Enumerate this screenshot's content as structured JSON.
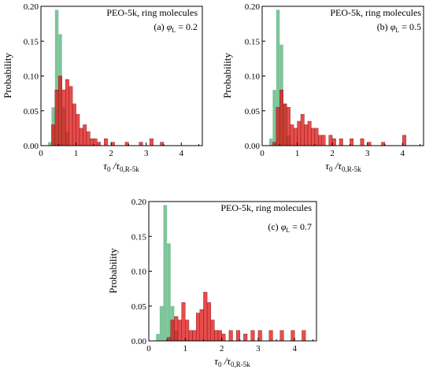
{
  "chart_data": [
    {
      "type": "histogram",
      "panel_id": "a",
      "annotation": {
        "line1": "PEO-5k, ring molecules",
        "label": "(a) ",
        "symbol": "φ",
        "subscript": "L",
        "value": " = 0.2"
      },
      "ylabel": "Probability",
      "xlabel": {
        "main": "τ",
        "sub0": "0",
        "sep": " /τ",
        "sub1": "0,R-5k"
      },
      "xlim": [
        0,
        4.6
      ],
      "ylim": [
        0,
        0.2
      ],
      "xticks": [
        "0",
        "1",
        "2",
        "3",
        "4"
      ],
      "yticks": [
        "0.00",
        "0.05",
        "0.10",
        "0.15",
        "0.20"
      ],
      "bin_width": 0.1,
      "series": [
        {
          "color": "#66bb88",
          "bins": [
            [
              0.2,
              0.005
            ],
            [
              0.3,
              0.055
            ],
            [
              0.4,
              0.195
            ],
            [
              0.5,
              0.16
            ],
            [
              0.6,
              0.055
            ],
            [
              0.7,
              0.02
            ]
          ]
        },
        {
          "color": "#e01010",
          "bins": [
            [
              0.3,
              0.03
            ],
            [
              0.4,
              0.08
            ],
            [
              0.5,
              0.1
            ],
            [
              0.6,
              0.08
            ],
            [
              0.7,
              0.095
            ],
            [
              0.8,
              0.085
            ],
            [
              0.9,
              0.06
            ],
            [
              1.0,
              0.045
            ],
            [
              1.1,
              0.025
            ],
            [
              1.2,
              0.03
            ],
            [
              1.3,
              0.02
            ],
            [
              1.4,
              0.01
            ],
            [
              1.5,
              0.01
            ],
            [
              1.6,
              0.005
            ],
            [
              1.8,
              0.01
            ],
            [
              2.0,
              0.005
            ],
            [
              2.4,
              0.005
            ],
            [
              2.8,
              0.005
            ],
            [
              3.1,
              0.01
            ],
            [
              3.4,
              0.005
            ]
          ]
        }
      ]
    },
    {
      "type": "histogram",
      "panel_id": "b",
      "annotation": {
        "line1": "PEO-5k, ring molecules",
        "label": "(b) ",
        "symbol": "φ",
        "subscript": "L",
        "value": " = 0.5"
      },
      "ylabel": "Probability",
      "xlabel": {
        "main": "τ",
        "sub0": "0",
        "sep": " /τ",
        "sub1": "0,R-5k"
      },
      "xlim": [
        0,
        4.6
      ],
      "ylim": [
        0,
        0.2
      ],
      "xticks": [
        "0",
        "1",
        "2",
        "3",
        "4"
      ],
      "yticks": [
        "0.00",
        "0.05",
        "0.10",
        "0.15",
        "0.20"
      ],
      "bin_width": 0.1,
      "series": [
        {
          "color": "#66bb88",
          "bins": [
            [
              0.2,
              0.01
            ],
            [
              0.3,
              0.08
            ],
            [
              0.4,
              0.195
            ],
            [
              0.5,
              0.145
            ],
            [
              0.6,
              0.06
            ],
            [
              0.7,
              0.015
            ]
          ]
        },
        {
          "color": "#e01010",
          "bins": [
            [
              0.3,
              0.005
            ],
            [
              0.4,
              0.055
            ],
            [
              0.5,
              0.08
            ],
            [
              0.6,
              0.06
            ],
            [
              0.7,
              0.055
            ],
            [
              0.8,
              0.03
            ],
            [
              0.9,
              0.025
            ],
            [
              1.0,
              0.035
            ],
            [
              1.1,
              0.045
            ],
            [
              1.2,
              0.03
            ],
            [
              1.3,
              0.035
            ],
            [
              1.4,
              0.025
            ],
            [
              1.5,
              0.025
            ],
            [
              1.6,
              0.015
            ],
            [
              1.7,
              0.015
            ],
            [
              1.9,
              0.015
            ],
            [
              2.0,
              0.01
            ],
            [
              2.2,
              0.01
            ],
            [
              2.5,
              0.01
            ],
            [
              2.8,
              0.01
            ],
            [
              3.0,
              0.005
            ],
            [
              3.4,
              0.005
            ],
            [
              4.0,
              0.015
            ]
          ]
        }
      ]
    },
    {
      "type": "histogram",
      "panel_id": "c",
      "annotation": {
        "line1": "PEO-5k, ring molecules",
        "label": "(c) ",
        "symbol": "φ",
        "subscript": "L",
        "value": " = 0.7"
      },
      "ylabel": "Probability",
      "xlabel": {
        "main": "τ",
        "sub0": "0",
        "sep": " /τ",
        "sub1": "0,R-5k"
      },
      "xlim": [
        0,
        4.6
      ],
      "ylim": [
        0,
        0.2
      ],
      "xticks": [
        "0",
        "1",
        "2",
        "3",
        "4"
      ],
      "yticks": [
        "0.00",
        "0.05",
        "0.10",
        "0.15",
        "0.20"
      ],
      "bin_width": 0.1,
      "series": [
        {
          "color": "#66bb88",
          "bins": [
            [
              0.2,
              0.01
            ],
            [
              0.3,
              0.05
            ],
            [
              0.4,
              0.195
            ],
            [
              0.5,
              0.14
            ],
            [
              0.6,
              0.05
            ],
            [
              0.7,
              0.015
            ]
          ]
        },
        {
          "color": "#e01010",
          "bins": [
            [
              0.5,
              0.005
            ],
            [
              0.6,
              0.03
            ],
            [
              0.7,
              0.035
            ],
            [
              0.8,
              0.03
            ],
            [
              0.9,
              0.055
            ],
            [
              1.0,
              0.03
            ],
            [
              1.1,
              0.015
            ],
            [
              1.2,
              0.015
            ],
            [
              1.3,
              0.04
            ],
            [
              1.4,
              0.045
            ],
            [
              1.5,
              0.07
            ],
            [
              1.6,
              0.055
            ],
            [
              1.7,
              0.03
            ],
            [
              1.8,
              0.015
            ],
            [
              1.9,
              0.015
            ],
            [
              2.0,
              0.01
            ],
            [
              2.2,
              0.015
            ],
            [
              2.4,
              0.015
            ],
            [
              2.6,
              0.01
            ],
            [
              2.8,
              0.015
            ],
            [
              3.0,
              0.015
            ],
            [
              3.3,
              0.015
            ],
            [
              3.6,
              0.015
            ],
            [
              3.9,
              0.015
            ],
            [
              4.2,
              0.015
            ]
          ]
        }
      ]
    }
  ]
}
